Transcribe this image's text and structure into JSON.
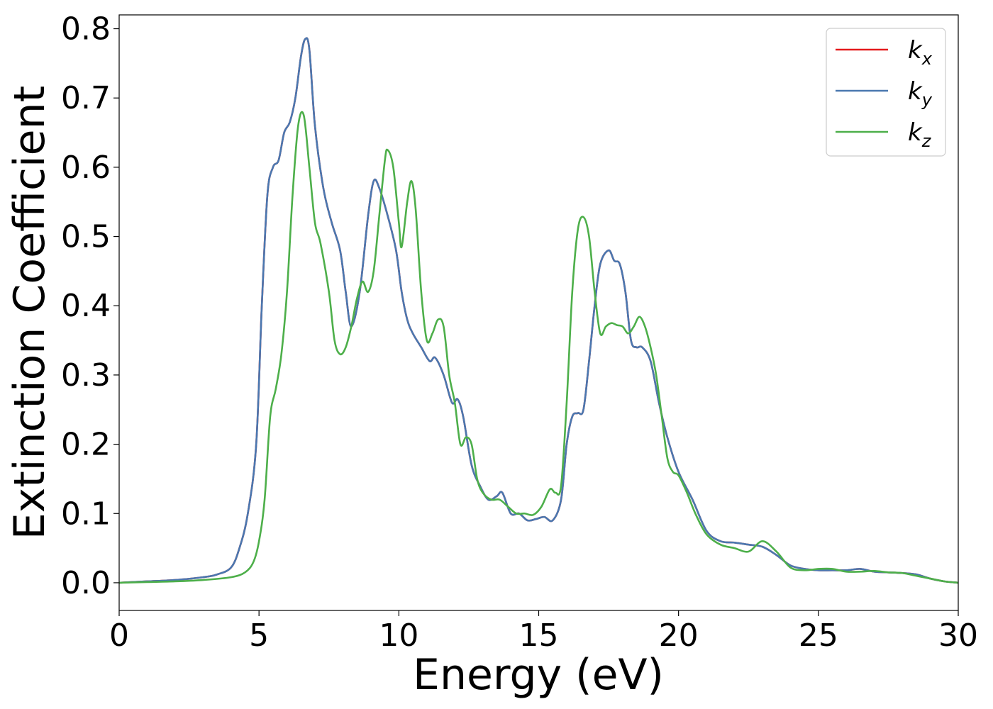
{
  "chart_data": {
    "type": "line",
    "xlabel": "Energy (eV)",
    "ylabel": "Extinction Coefficient",
    "xlim": [
      0,
      30
    ],
    "ylim": [
      -0.04,
      0.82
    ],
    "xticks": [
      "0",
      "5",
      "10",
      "15",
      "20",
      "25",
      "30"
    ],
    "yticks": [
      "0.0",
      "0.1",
      "0.2",
      "0.3",
      "0.4",
      "0.5",
      "0.6",
      "0.7",
      "0.8"
    ],
    "grid": false,
    "legend_position": "top-right",
    "series": [
      {
        "name": "k",
        "sub": "x",
        "color": "#e41a1c",
        "x": [
          0,
          1,
          2,
          3,
          3.5,
          4,
          4.3,
          4.6,
          4.9,
          5.1,
          5.3,
          5.5,
          5.7,
          5.9,
          6.1,
          6.3,
          6.5,
          6.65,
          6.8,
          7.0,
          7.3,
          7.6,
          7.9,
          8.1,
          8.3,
          8.6,
          8.9,
          9.1,
          9.3,
          9.6,
          9.9,
          10.1,
          10.3,
          10.5,
          10.8,
          11.1,
          11.3,
          11.6,
          11.9,
          12.1,
          12.3,
          12.6,
          12.9,
          13.2,
          13.5,
          13.7,
          14.0,
          14.3,
          14.6,
          14.9,
          15.2,
          15.5,
          15.8,
          16.0,
          16.2,
          16.4,
          16.6,
          16.8,
          17.0,
          17.2,
          17.5,
          17.7,
          17.9,
          18.1,
          18.3,
          18.5,
          18.7,
          19.0,
          19.3,
          19.6,
          20.0,
          20.5,
          21.0,
          21.5,
          22.0,
          22.5,
          23.0,
          23.5,
          24.0,
          24.5,
          25.0,
          25.5,
          26.0,
          26.5,
          27.0,
          27.5,
          28.0,
          28.5,
          29.0,
          29.5,
          30.0
        ],
        "y": [
          0.0,
          0.002,
          0.004,
          0.008,
          0.012,
          0.022,
          0.05,
          0.1,
          0.2,
          0.4,
          0.56,
          0.6,
          0.61,
          0.65,
          0.665,
          0.7,
          0.76,
          0.785,
          0.77,
          0.66,
          0.57,
          0.52,
          0.48,
          0.42,
          0.37,
          0.42,
          0.53,
          0.58,
          0.57,
          0.53,
          0.48,
          0.42,
          0.38,
          0.36,
          0.34,
          0.32,
          0.325,
          0.3,
          0.26,
          0.265,
          0.24,
          0.17,
          0.14,
          0.12,
          0.125,
          0.13,
          0.1,
          0.1,
          0.09,
          0.092,
          0.095,
          0.09,
          0.12,
          0.2,
          0.24,
          0.245,
          0.25,
          0.32,
          0.4,
          0.46,
          0.48,
          0.465,
          0.46,
          0.42,
          0.35,
          0.34,
          0.34,
          0.32,
          0.26,
          0.21,
          0.16,
          0.12,
          0.075,
          0.06,
          0.058,
          0.055,
          0.052,
          0.04,
          0.025,
          0.02,
          0.018,
          0.018,
          0.018,
          0.02,
          0.016,
          0.015,
          0.014,
          0.012,
          0.006,
          0.002,
          0.0
        ]
      },
      {
        "name": "k",
        "sub": "y",
        "color": "#4a78b0",
        "x": [
          0,
          1,
          2,
          3,
          3.5,
          4,
          4.3,
          4.6,
          4.9,
          5.1,
          5.3,
          5.5,
          5.7,
          5.9,
          6.1,
          6.3,
          6.5,
          6.65,
          6.8,
          7.0,
          7.3,
          7.6,
          7.9,
          8.1,
          8.3,
          8.6,
          8.9,
          9.1,
          9.3,
          9.6,
          9.9,
          10.1,
          10.3,
          10.5,
          10.8,
          11.1,
          11.3,
          11.6,
          11.9,
          12.1,
          12.3,
          12.6,
          12.9,
          13.2,
          13.5,
          13.7,
          14.0,
          14.3,
          14.6,
          14.9,
          15.2,
          15.5,
          15.8,
          16.0,
          16.2,
          16.4,
          16.6,
          16.8,
          17.0,
          17.2,
          17.5,
          17.7,
          17.9,
          18.1,
          18.3,
          18.5,
          18.7,
          19.0,
          19.3,
          19.6,
          20.0,
          20.5,
          21.0,
          21.5,
          22.0,
          22.5,
          23.0,
          23.5,
          24.0,
          24.5,
          25.0,
          25.5,
          26.0,
          26.5,
          27.0,
          27.5,
          28.0,
          28.5,
          29.0,
          29.5,
          30.0
        ],
        "y": [
          0.0,
          0.002,
          0.004,
          0.008,
          0.012,
          0.022,
          0.05,
          0.1,
          0.2,
          0.4,
          0.56,
          0.6,
          0.61,
          0.65,
          0.665,
          0.7,
          0.76,
          0.785,
          0.77,
          0.66,
          0.57,
          0.52,
          0.48,
          0.42,
          0.37,
          0.42,
          0.53,
          0.58,
          0.57,
          0.53,
          0.48,
          0.42,
          0.38,
          0.36,
          0.34,
          0.32,
          0.325,
          0.3,
          0.26,
          0.265,
          0.24,
          0.17,
          0.14,
          0.12,
          0.125,
          0.13,
          0.1,
          0.1,
          0.09,
          0.092,
          0.095,
          0.09,
          0.12,
          0.2,
          0.24,
          0.245,
          0.25,
          0.32,
          0.4,
          0.46,
          0.48,
          0.465,
          0.46,
          0.42,
          0.35,
          0.34,
          0.34,
          0.32,
          0.26,
          0.21,
          0.16,
          0.12,
          0.075,
          0.06,
          0.058,
          0.055,
          0.052,
          0.04,
          0.025,
          0.02,
          0.018,
          0.018,
          0.018,
          0.02,
          0.016,
          0.015,
          0.014,
          0.012,
          0.006,
          0.002,
          0.0
        ]
      },
      {
        "name": "k",
        "sub": "z",
        "color": "#4daf4a",
        "x": [
          0,
          1,
          2,
          3,
          4,
          4.5,
          4.8,
          5.0,
          5.2,
          5.4,
          5.6,
          5.8,
          6.0,
          6.2,
          6.4,
          6.6,
          6.8,
          7.0,
          7.2,
          7.5,
          7.7,
          7.9,
          8.1,
          8.3,
          8.5,
          8.7,
          8.9,
          9.1,
          9.3,
          9.5,
          9.6,
          9.8,
          10.0,
          10.1,
          10.3,
          10.45,
          10.6,
          10.8,
          11.0,
          11.2,
          11.4,
          11.6,
          11.8,
          12.0,
          12.2,
          12.4,
          12.6,
          12.8,
          13.0,
          13.3,
          13.6,
          13.9,
          14.2,
          14.5,
          14.8,
          15.1,
          15.4,
          15.6,
          15.8,
          16.0,
          16.2,
          16.4,
          16.6,
          16.8,
          17.0,
          17.2,
          17.4,
          17.6,
          17.8,
          18.0,
          18.2,
          18.4,
          18.6,
          18.8,
          19.0,
          19.2,
          19.4,
          19.6,
          19.8,
          20.0,
          20.3,
          20.6,
          21.0,
          21.5,
          22.0,
          22.5,
          23.0,
          23.5,
          24.0,
          24.5,
          25.0,
          25.5,
          26.0,
          26.5,
          27.0,
          27.5,
          28.0,
          28.5,
          29.0,
          29.5,
          30.0
        ],
        "y": [
          0.0,
          0.001,
          0.002,
          0.004,
          0.008,
          0.015,
          0.03,
          0.06,
          0.12,
          0.24,
          0.28,
          0.33,
          0.42,
          0.56,
          0.66,
          0.675,
          0.6,
          0.52,
          0.49,
          0.42,
          0.35,
          0.33,
          0.34,
          0.37,
          0.41,
          0.435,
          0.42,
          0.45,
          0.53,
          0.61,
          0.625,
          0.6,
          0.52,
          0.485,
          0.55,
          0.58,
          0.54,
          0.42,
          0.35,
          0.36,
          0.38,
          0.37,
          0.3,
          0.26,
          0.2,
          0.21,
          0.2,
          0.15,
          0.13,
          0.12,
          0.12,
          0.11,
          0.1,
          0.1,
          0.098,
          0.11,
          0.135,
          0.13,
          0.14,
          0.26,
          0.42,
          0.51,
          0.528,
          0.5,
          0.42,
          0.36,
          0.37,
          0.375,
          0.372,
          0.37,
          0.36,
          0.37,
          0.384,
          0.37,
          0.34,
          0.3,
          0.24,
          0.18,
          0.16,
          0.155,
          0.13,
          0.1,
          0.07,
          0.055,
          0.05,
          0.045,
          0.06,
          0.045,
          0.022,
          0.018,
          0.02,
          0.02,
          0.016,
          0.016,
          0.017,
          0.015,
          0.014,
          0.01,
          0.006,
          0.002,
          0.0
        ]
      }
    ]
  }
}
